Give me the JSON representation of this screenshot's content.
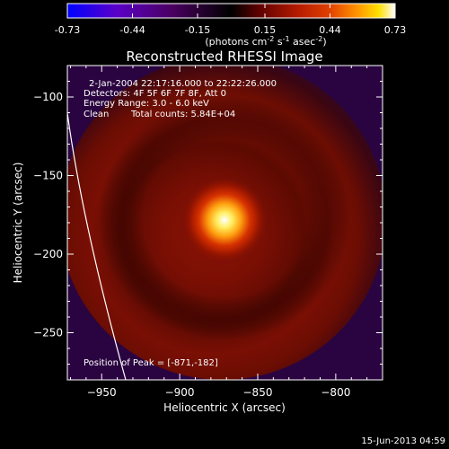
{
  "colorbar": {
    "tick_labels": [
      "-0.73",
      "-0.44",
      "-0.15",
      "0.15",
      "0.44",
      "0.73"
    ],
    "tick_values": [
      -0.73,
      -0.44,
      -0.15,
      0.15,
      0.44,
      0.73
    ],
    "range": [
      -0.73,
      0.73
    ],
    "units_main": "(photons cm",
    "units_exp1": "-2",
    "units_mid": " s",
    "units_exp2": "-1",
    "units_end": " asec",
    "units_exp3": "-2",
    "units_close": ")",
    "colors": [
      "#0000ff",
      "#5a00c8",
      "#4a0060",
      "#000000",
      "#5a0000",
      "#b31a00",
      "#e04000",
      "#ff9000",
      "#ffe000",
      "#ffffff"
    ]
  },
  "chart_data": {
    "type": "heatmap",
    "title": "Reconstructed RHESSI Image",
    "xlabel": "Heliocentric X (arcsec)",
    "ylabel": "Heliocentric Y (arcsec)",
    "xlim": [
      -972,
      -770
    ],
    "ylim": [
      -280,
      -80
    ],
    "x_ticks": [
      -950,
      -900,
      -850,
      -800
    ],
    "y_ticks": [
      -100,
      -150,
      -200,
      -250
    ],
    "x_tick_labels": [
      "−950",
      "−900",
      "−850",
      "−800"
    ],
    "y_tick_labels": [
      "−100",
      "−150",
      "−200",
      "−250"
    ],
    "peak": [
      -871,
      -182
    ],
    "annotations": {
      "time_range": "2-Jan-2004 22:17:16.000 to 22:22:26.000",
      "detectors": "Detectors: 4F 5F 6F 7F 8F, Att 0",
      "energy": "Energy Range: 3.0 - 6.0 keV",
      "clean": "Clean",
      "counts": "Total counts: 5.84E+04",
      "peak_position": "Position of Peak = [-871,-182]"
    }
  },
  "footer": {
    "timestamp": "15-Jun-2013 04:59"
  }
}
